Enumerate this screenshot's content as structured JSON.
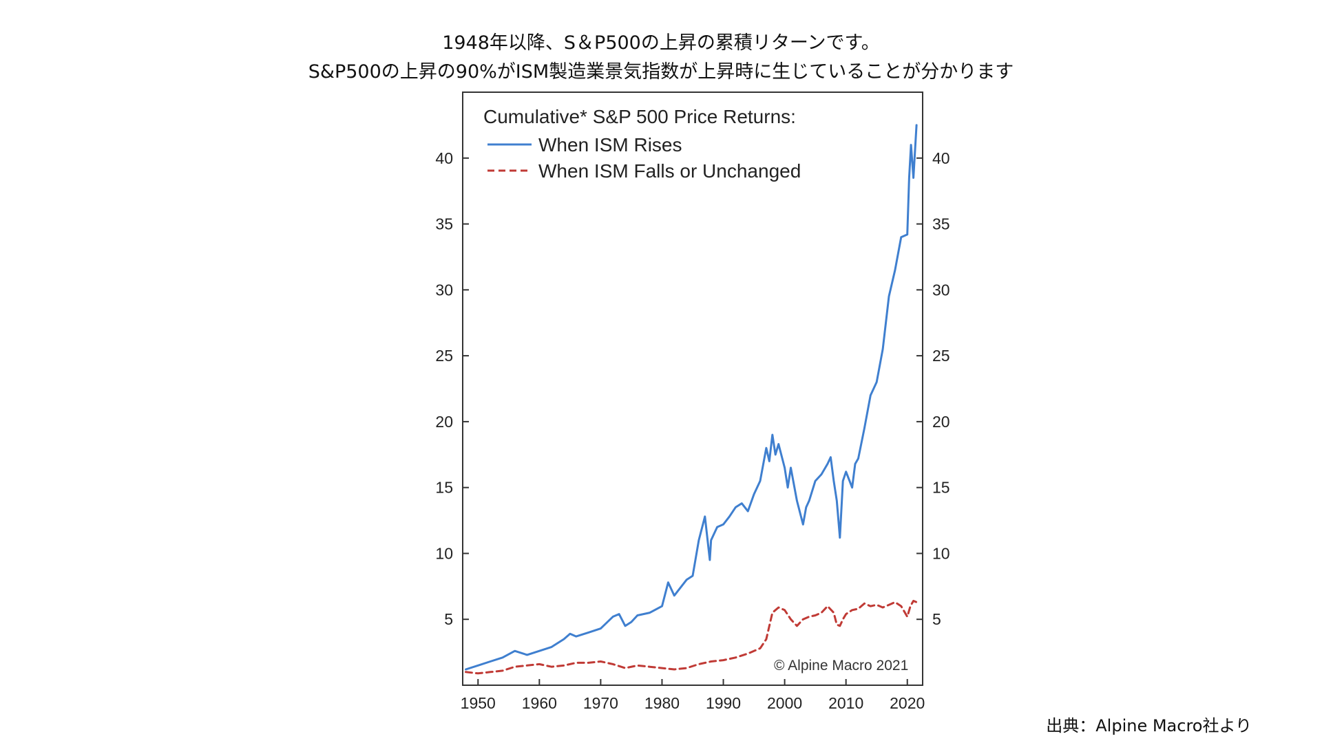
{
  "headline": {
    "line1": "1948年以降、S＆P500の上昇の累積リターンです。",
    "line2": "S&P500の上昇の90%がISM製造業景気指数が上昇時に生じていることが分かります"
  },
  "source_note": "出典：Alpine Macro社より",
  "chart_data": {
    "type": "line",
    "title": "Cumulative* S&P 500 Price Returns:",
    "copyright": "© Alpine Macro 2021",
    "xlim": [
      1947.5,
      2022.5
    ],
    "ylim": [
      0,
      45
    ],
    "x_ticks": [
      1950,
      1960,
      1970,
      1980,
      1990,
      2000,
      2010,
      2020
    ],
    "x_tick_labels": [
      "1950",
      "1960",
      "1970",
      "1980",
      "1990",
      "2000",
      "2010",
      "2020"
    ],
    "y_ticks": [
      5,
      10,
      15,
      20,
      25,
      30,
      35,
      40
    ],
    "y_tick_labels": [
      "5",
      "10",
      "15",
      "20",
      "25",
      "30",
      "35",
      "40"
    ],
    "y_axis_both_sides": true,
    "grid": false,
    "legend_placement": "top-left",
    "series": [
      {
        "name": "When ISM Rises",
        "color": "#3f7fcf",
        "style": "solid",
        "x": [
          1948,
          1950,
          1952,
          1954,
          1956,
          1958,
          1960,
          1962,
          1964,
          1965,
          1966,
          1968,
          1970,
          1972,
          1973,
          1974,
          1975,
          1976,
          1978,
          1980,
          1981,
          1982,
          1984,
          1985,
          1986,
          1987,
          1987.8,
          1988,
          1989,
          1990,
          1991,
          1992,
          1993,
          1994,
          1995,
          1996,
          1997,
          1997.5,
          1998,
          1998.5,
          1999,
          2000,
          2000.5,
          2001,
          2002,
          2003,
          2003.5,
          2004,
          2005,
          2006,
          2007,
          2007.5,
          2008,
          2008.5,
          2009,
          2009.5,
          2010,
          2011,
          2011.5,
          2012,
          2013,
          2014,
          2015,
          2016,
          2017,
          2018,
          2019,
          2020,
          2020.3,
          2020.6,
          2021,
          2021.5
        ],
        "values": [
          1.2,
          1.5,
          1.8,
          2.1,
          2.6,
          2.3,
          2.6,
          2.9,
          3.5,
          3.9,
          3.7,
          4.0,
          4.3,
          5.2,
          5.4,
          4.5,
          4.8,
          5.3,
          5.5,
          6.0,
          7.8,
          6.8,
          8.0,
          8.3,
          11.0,
          12.8,
          9.5,
          11.0,
          12.0,
          12.2,
          12.8,
          13.5,
          13.8,
          13.2,
          14.5,
          15.5,
          18.0,
          17.0,
          19.0,
          17.5,
          18.3,
          16.5,
          15.0,
          16.5,
          14.0,
          12.2,
          13.5,
          14.0,
          15.5,
          16.0,
          16.8,
          17.3,
          15.5,
          14.0,
          11.2,
          15.5,
          16.2,
          15.0,
          16.8,
          17.2,
          19.5,
          22.0,
          23.0,
          25.5,
          29.5,
          31.5,
          34.0,
          34.2,
          38.5,
          41.0,
          38.5,
          42.5
        ]
      },
      {
        "name": "When ISM Falls or Unchanged",
        "color": "#c03a35",
        "style": "dashed",
        "x": [
          1948,
          1950,
          1952,
          1954,
          1956,
          1958,
          1960,
          1962,
          1964,
          1966,
          1968,
          1970,
          1972,
          1974,
          1976,
          1978,
          1980,
          1982,
          1984,
          1986,
          1988,
          1990,
          1992,
          1994,
          1996,
          1997,
          1998,
          1999,
          2000,
          2001,
          2002,
          2003,
          2004,
          2005,
          2006,
          2007,
          2008,
          2008.5,
          2009,
          2009.5,
          2010,
          2011,
          2012,
          2013,
          2014,
          2015,
          2016,
          2017,
          2018,
          2019,
          2020,
          2020.5,
          2021,
          2021.5
        ],
        "values": [
          1.0,
          0.9,
          1.0,
          1.1,
          1.4,
          1.5,
          1.6,
          1.4,
          1.5,
          1.7,
          1.7,
          1.8,
          1.6,
          1.3,
          1.5,
          1.4,
          1.3,
          1.2,
          1.3,
          1.6,
          1.8,
          1.9,
          2.1,
          2.4,
          2.8,
          3.5,
          5.5,
          5.9,
          5.7,
          5.0,
          4.5,
          5.0,
          5.2,
          5.3,
          5.5,
          6.0,
          5.5,
          4.6,
          4.5,
          5.0,
          5.4,
          5.7,
          5.8,
          6.2,
          6.0,
          6.1,
          5.9,
          6.1,
          6.3,
          6.0,
          5.2,
          6.0,
          6.4,
          6.3
        ]
      }
    ]
  }
}
